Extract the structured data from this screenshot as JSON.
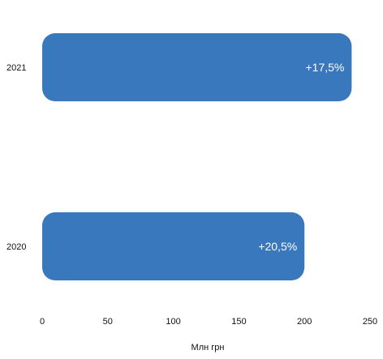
{
  "chart_data": {
    "type": "bar",
    "orientation": "horizontal",
    "categories": [
      "2021",
      "2020"
    ],
    "values": [
      236,
      200
    ],
    "data_labels": [
      "+17,5%",
      "+20,5%"
    ],
    "xlabel": "Млн грн",
    "xlim": [
      0,
      250
    ],
    "x_ticks": [
      0,
      50,
      100,
      150,
      200,
      250
    ],
    "grid": false,
    "legend": "none",
    "bar_color": "#3a78bd"
  }
}
